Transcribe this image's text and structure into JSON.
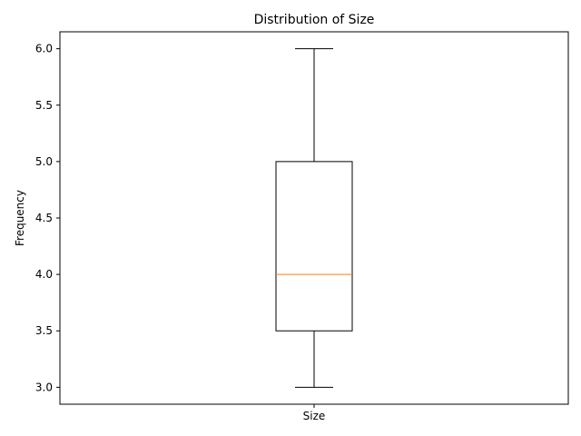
{
  "chart_data": {
    "type": "box",
    "title": "Distribution of Size",
    "xlabel": "",
    "ylabel": "Frequency",
    "categories": [
      "Size"
    ],
    "boxes": [
      {
        "category": "Size",
        "whisker_low": 3.0,
        "q1": 3.5,
        "median": 4.0,
        "q3": 5.0,
        "whisker_high": 6.0
      }
    ],
    "ylim": [
      2.85,
      6.15
    ],
    "yticks": [
      3.0,
      3.5,
      4.0,
      4.5,
      5.0,
      5.5,
      6.0
    ],
    "ytick_labels": [
      "3.0",
      "3.5",
      "4.0",
      "4.5",
      "5.0",
      "5.5",
      "6.0"
    ],
    "grid": false,
    "colors": {
      "box": "#000000",
      "median": "#ff7f0e"
    }
  }
}
